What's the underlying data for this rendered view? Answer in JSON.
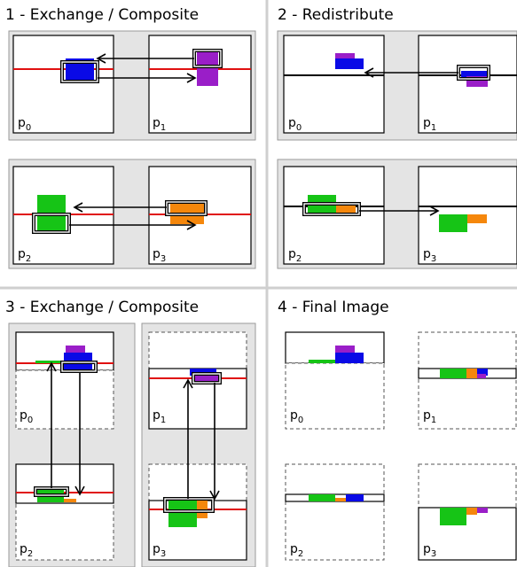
{
  "panels": [
    {
      "title": "1 - Exchange / Composite",
      "labels": [
        {
          "letter": "p",
          "sub": "0"
        },
        {
          "letter": "p",
          "sub": "1"
        },
        {
          "letter": "p",
          "sub": "2"
        },
        {
          "letter": "p",
          "sub": "3"
        }
      ]
    },
    {
      "title": "2 - Redistribute",
      "labels": [
        {
          "letter": "p",
          "sub": "0"
        },
        {
          "letter": "p",
          "sub": "1"
        },
        {
          "letter": "p",
          "sub": "2"
        },
        {
          "letter": "p",
          "sub": "3"
        }
      ]
    },
    {
      "title": "3 - Exchange / Composite",
      "labels": [
        {
          "letter": "p",
          "sub": "0"
        },
        {
          "letter": "p",
          "sub": "1"
        },
        {
          "letter": "p",
          "sub": "2"
        },
        {
          "letter": "p",
          "sub": "3"
        }
      ]
    },
    {
      "title": "4 - Final Image",
      "labels": [
        {
          "letter": "p",
          "sub": "0"
        },
        {
          "letter": "p",
          "sub": "1"
        },
        {
          "letter": "p",
          "sub": "2"
        },
        {
          "letter": "p",
          "sub": "3"
        }
      ]
    }
  ]
}
